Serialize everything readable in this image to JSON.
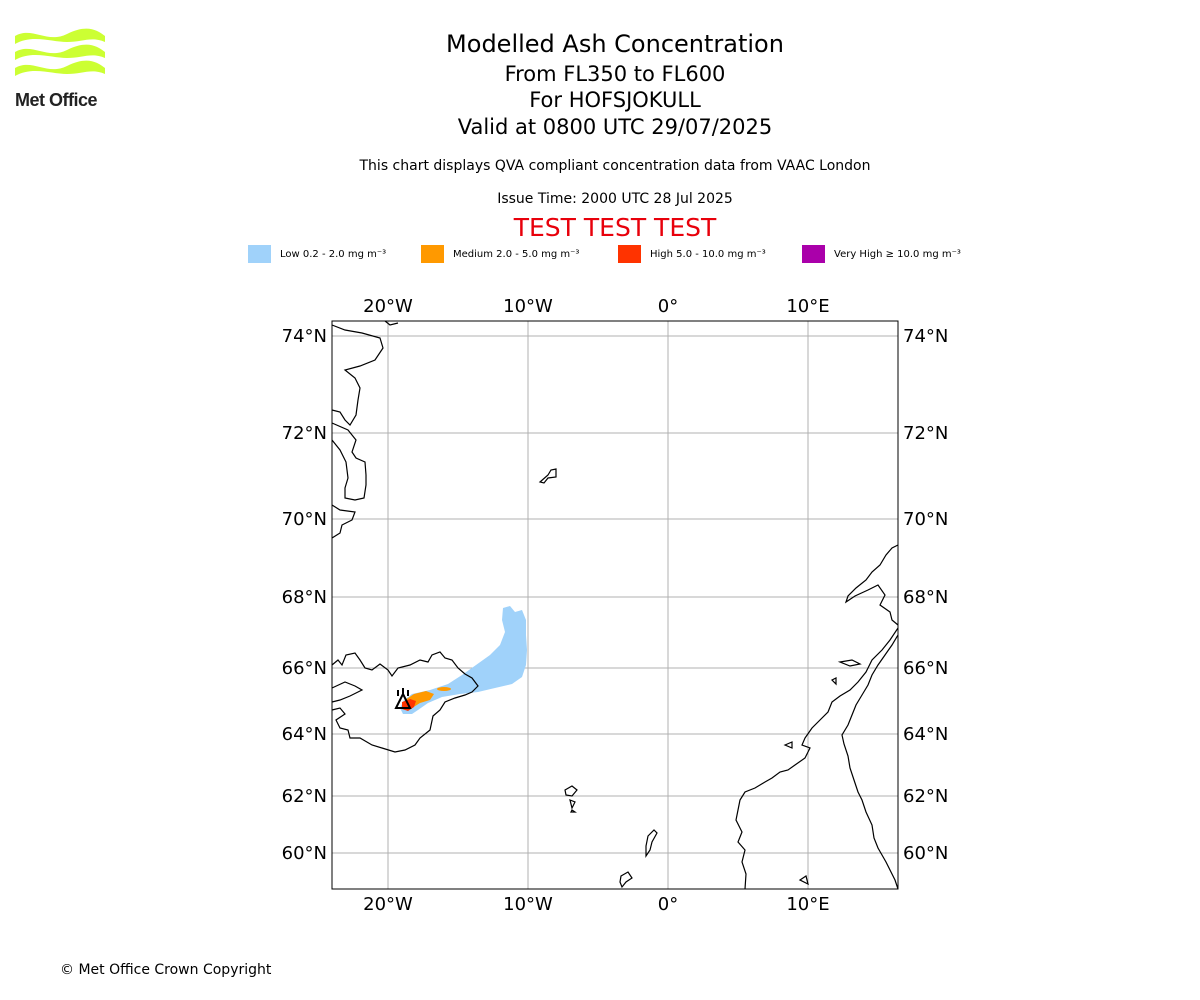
{
  "logo": {
    "text": "Met Office",
    "brand_color": "#ccff33"
  },
  "title": {
    "line1": "Modelled Ash Concentration",
    "line2": "From FL350 to FL600",
    "line3": "For HOFSJOKULL",
    "line4": "Valid at 0800 UTC 29/07/2025"
  },
  "description": "This chart displays QVA compliant concentration data from VAAC London",
  "issue_time": "Issue Time: 2000 UTC 28 Jul 2025",
  "test_banner": "TEST TEST TEST",
  "legend": [
    {
      "label": "Low 0.2 - 2.0 mg m⁻³",
      "color": "#a0d2fa"
    },
    {
      "label": "Medium 2.0 - 5.0 mg m⁻³",
      "color": "#ff9900"
    },
    {
      "label": "High 5.0 - 10.0 mg m⁻³",
      "color": "#ff3300"
    },
    {
      "label": "Very High ≥ 10.0 mg m⁻³",
      "color": "#aa00aa"
    }
  ],
  "map": {
    "lon_labels": [
      "20°W",
      "10°W",
      "0°",
      "10°E"
    ],
    "lat_labels": [
      "74°N",
      "72°N",
      "70°N",
      "68°N",
      "66°N",
      "64°N",
      "62°N",
      "60°N"
    ],
    "volcano": "HOFSJOKULL",
    "grid_color": "#b0b0b0"
  },
  "copyright": "© Met Office Crown Copyright"
}
